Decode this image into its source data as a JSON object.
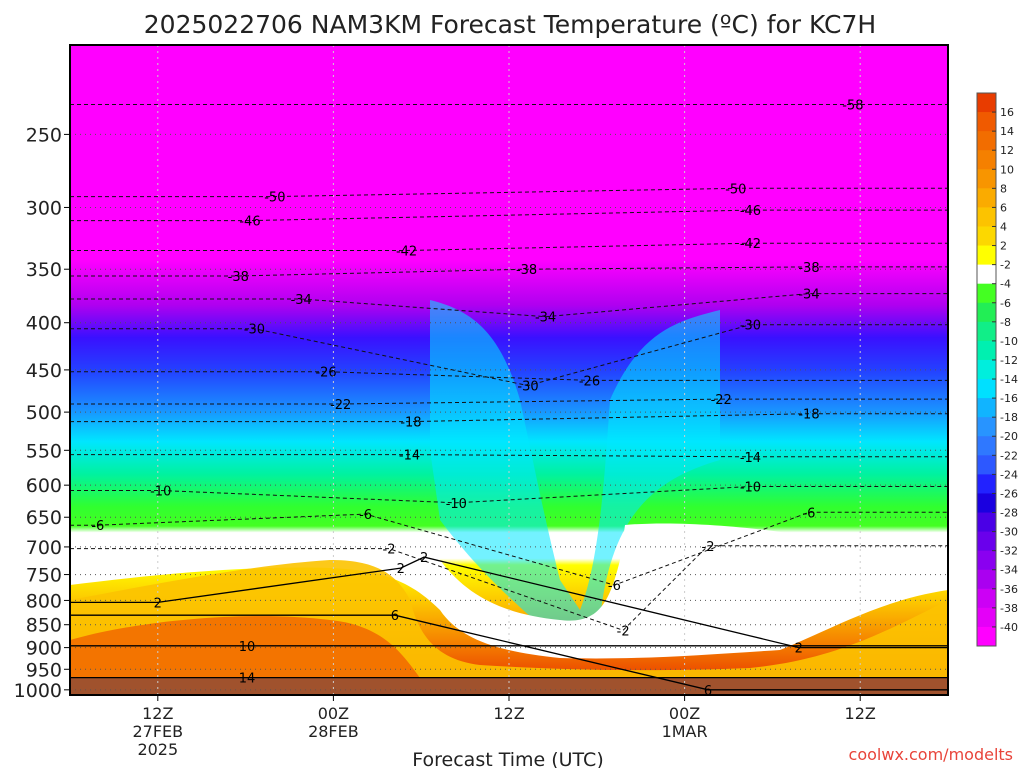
{
  "chart_data": {
    "type": "heatmap",
    "title": "2025022706 NAM3KM Forecast Temperature (ºC) for KC7H",
    "xlabel": "Forecast Time (UTC)",
    "ylabel": "",
    "credit": "coolwx.com/modelts",
    "x_ticks": [
      {
        "label": "12Z",
        "sub": "27FEB",
        "sub2": "2025",
        "hour": 6
      },
      {
        "label": "00Z",
        "sub": "28FEB",
        "sub2": "",
        "hour": 18
      },
      {
        "label": "12Z",
        "sub": "",
        "sub2": "",
        "hour": 30
      },
      {
        "label": "00Z",
        "sub": "1MAR",
        "sub2": "",
        "hour": 42
      },
      {
        "label": "12Z",
        "sub": "",
        "sub2": "",
        "hour": 54
      }
    ],
    "x_range_hours": [
      0,
      60
    ],
    "y_ticks": [
      250,
      300,
      350,
      400,
      450,
      500,
      550,
      600,
      650,
      700,
      750,
      800,
      850,
      900,
      950,
      1000
    ],
    "y_range_hpa": [
      200,
      1013
    ],
    "y_scale": "log-pressure",
    "colorbar_labels": [
      16,
      14,
      12,
      10,
      8,
      6,
      4,
      2,
      -2,
      -4,
      -6,
      -8,
      -10,
      -12,
      -14,
      -16,
      -18,
      -20,
      -22,
      -24,
      -26,
      -28,
      -30,
      -32,
      -34,
      -36,
      -38,
      -40
    ],
    "colorbar_colors": [
      "#e83c00",
      "#f05a00",
      "#f26d00",
      "#f58000",
      "#f89500",
      "#faab00",
      "#fcc300",
      "#fcd800",
      "#ffff00",
      "#ffffff",
      "#44ff22",
      "#22ee55",
      "#11ee88",
      "#00f0b0",
      "#00eedd",
      "#00e0ff",
      "#11b4ff",
      "#2894ff",
      "#2f78ff",
      "#2d58ff",
      "#2222ff",
      "#1a00e0",
      "#4a00e6",
      "#6a00ec",
      "#8a00f0",
      "#aa00f0",
      "#cc00f5",
      "#e400f8",
      "#ff00ff"
    ],
    "contour_labels": [
      {
        "text": "-58",
        "hour": 53.5,
        "p": 232
      },
      {
        "text": "-50",
        "hour": 14,
        "p": 292
      },
      {
        "text": "-50",
        "hour": 45.5,
        "p": 286
      },
      {
        "text": "-46",
        "hour": 12.3,
        "p": 310
      },
      {
        "text": "-46",
        "hour": 46.5,
        "p": 302
      },
      {
        "text": "-42",
        "hour": 23,
        "p": 334
      },
      {
        "text": "-42",
        "hour": 46.5,
        "p": 328
      },
      {
        "text": "-38",
        "hour": 11.5,
        "p": 356
      },
      {
        "text": "-38",
        "hour": 31.2,
        "p": 350
      },
      {
        "text": "-38",
        "hour": 50.5,
        "p": 348
      },
      {
        "text": "-34",
        "hour": 15.8,
        "p": 377
      },
      {
        "text": "-34",
        "hour": 32.5,
        "p": 394
      },
      {
        "text": "-34",
        "hour": 50.5,
        "p": 372
      },
      {
        "text": "-30",
        "hour": 12.6,
        "p": 406
      },
      {
        "text": "-30",
        "hour": 31.3,
        "p": 468
      },
      {
        "text": "-30",
        "hour": 46.5,
        "p": 402
      },
      {
        "text": "-26",
        "hour": 17.5,
        "p": 452
      },
      {
        "text": "-26",
        "hour": 35.5,
        "p": 462
      },
      {
        "text": "-22",
        "hour": 18.5,
        "p": 490
      },
      {
        "text": "-22",
        "hour": 44.5,
        "p": 484
      },
      {
        "text": "-18",
        "hour": 23.3,
        "p": 512
      },
      {
        "text": "-18",
        "hour": 50.5,
        "p": 502
      },
      {
        "text": "-14",
        "hour": 23.2,
        "p": 556
      },
      {
        "text": "-14",
        "hour": 46.5,
        "p": 559
      },
      {
        "text": "-10",
        "hour": 6.2,
        "p": 608
      },
      {
        "text": "-10",
        "hour": 26.4,
        "p": 627
      },
      {
        "text": "-10",
        "hour": 46.5,
        "p": 602
      },
      {
        "text": "-6",
        "hour": 1.9,
        "p": 663
      },
      {
        "text": "-6",
        "hour": 20.2,
        "p": 645
      },
      {
        "text": "-6",
        "hour": 37.2,
        "p": 770
      },
      {
        "text": "-6",
        "hour": 50.5,
        "p": 642
      },
      {
        "text": "-2",
        "hour": 21.8,
        "p": 703
      },
      {
        "text": "-2",
        "hour": 37.8,
        "p": 862
      },
      {
        "text": "-2",
        "hour": 43.6,
        "p": 698
      },
      {
        "text": "2",
        "hour": 6,
        "p": 804
      },
      {
        "text": "2",
        "hour": 22.6,
        "p": 738
      },
      {
        "text": "2",
        "hour": 24.2,
        "p": 718
      },
      {
        "text": "2",
        "hour": 49.8,
        "p": 900
      },
      {
        "text": "6",
        "hour": 22.2,
        "p": 830
      },
      {
        "text": "6",
        "hour": 43.6,
        "p": 1000
      },
      {
        "text": "10",
        "hour": 12.1,
        "p": 896
      },
      {
        "text": "14",
        "hour": 12.1,
        "p": 970
      }
    ]
  }
}
